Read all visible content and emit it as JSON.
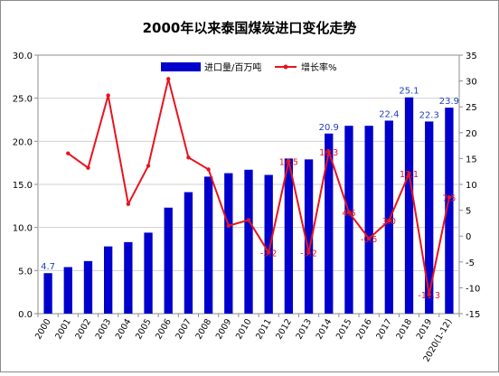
{
  "chart_data": {
    "type": "bar",
    "title": "2000年以来泰国煤炭进口变化走势",
    "categories": [
      "2000",
      "2001",
      "2002",
      "2003",
      "2004",
      "2005",
      "2006",
      "2007",
      "2008",
      "2009",
      "2010",
      "2011",
      "2012",
      "2013",
      "2014",
      "2015",
      "2016",
      "2017",
      "2018",
      "2019",
      "2020(1-12)"
    ],
    "left_axis": {
      "min": 0,
      "max": 30,
      "step": 5,
      "ticks": [
        "0.0",
        "5.0",
        "10.0",
        "15.0",
        "20.0",
        "25.0",
        "30.0"
      ]
    },
    "right_axis": {
      "min": -15,
      "max": 35,
      "step": 5,
      "ticks": [
        "-15",
        "-10",
        "-5",
        "0",
        "5",
        "10",
        "15",
        "20",
        "25",
        "30",
        "35"
      ]
    },
    "grid": true,
    "legend_position": "top",
    "series": [
      {
        "name": "进口量/百万吨",
        "type": "bar",
        "axis": "left",
        "color": "#0000CC",
        "values": [
          4.7,
          5.4,
          6.1,
          7.8,
          8.3,
          9.4,
          12.3,
          14.1,
          15.9,
          16.3,
          16.7,
          16.1,
          18.0,
          17.9,
          20.9,
          21.8,
          21.8,
          22.4,
          25.1,
          22.3,
          23.9
        ]
      },
      {
        "name": "增长率%",
        "type": "line",
        "axis": "right",
        "color": "#E8141E",
        "values": [
          null,
          16.0,
          13.2,
          27.2,
          6.2,
          13.6,
          30.4,
          15.2,
          12.9,
          2.0,
          3.1,
          -3.2,
          14.5,
          -3.2,
          16.3,
          4.6,
          -0.5,
          3.0,
          12.1,
          -11.3,
          7.5
        ]
      }
    ],
    "bar_labels": [
      {
        "index": 0,
        "text": "4.7"
      },
      {
        "index": 14,
        "text": "20.9"
      },
      {
        "index": 17,
        "text": "22.4"
      },
      {
        "index": 18,
        "text": "25.1"
      },
      {
        "index": 19,
        "text": "22.3"
      },
      {
        "index": 20,
        "text": "23.9"
      }
    ],
    "line_labels": [
      {
        "index": 11,
        "text": "-3.2"
      },
      {
        "index": 12,
        "text": "14.5"
      },
      {
        "index": 13,
        "text": "-3.2"
      },
      {
        "index": 14,
        "text": "16.3"
      },
      {
        "index": 15,
        "text": "4.6"
      },
      {
        "index": 16,
        "text": "-0.5"
      },
      {
        "index": 17,
        "text": "3.0"
      },
      {
        "index": 18,
        "text": "12.1"
      },
      {
        "index": 19,
        "text": "-11.3"
      },
      {
        "index": 20,
        "text": "7.5"
      }
    ]
  }
}
